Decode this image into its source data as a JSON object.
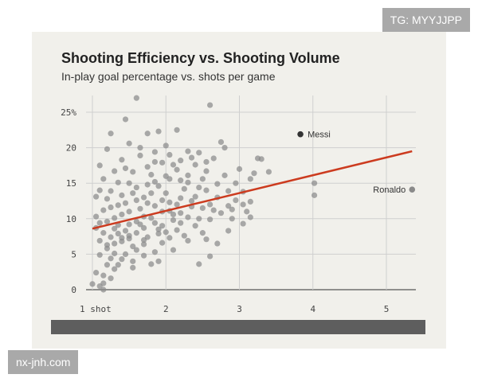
{
  "watermarks": {
    "top_right": "TG: MYYJJPP",
    "bottom_left": "nx-jnh.com"
  },
  "chart_data": {
    "type": "scatter",
    "title": "Shooting Efficiency vs. Shooting Volume",
    "subtitle": "In-play goal percentage vs. shots per game",
    "xlabel": "",
    "ylabel": "",
    "xlim": [
      0.85,
      5.4
    ],
    "ylim": [
      0,
      27
    ],
    "grid": true,
    "x_ticks": [
      {
        "value": 1,
        "label": "1 shot"
      },
      {
        "value": 2,
        "label": "2"
      },
      {
        "value": 3,
        "label": "3"
      },
      {
        "value": 4,
        "label": "4"
      },
      {
        "value": 5,
        "label": "5"
      }
    ],
    "y_ticks": [
      {
        "value": 0,
        "label": "0"
      },
      {
        "value": 5,
        "label": "5"
      },
      {
        "value": 10,
        "label": "10"
      },
      {
        "value": 15,
        "label": "15"
      },
      {
        "value": 20,
        "label": "20"
      },
      {
        "value": 25,
        "label": "25%"
      }
    ],
    "colors": {
      "points": "#8a8a8a",
      "highlight": "#333333",
      "trend": "#cc3b1f"
    },
    "trendline": {
      "x": [
        1.0,
        5.35
      ],
      "y": [
        8.6,
        19.5
      ]
    },
    "highlights": [
      {
        "name": "Messi",
        "x": 3.83,
        "y": 21.9
      },
      {
        "name": "Ronaldo",
        "x": 5.35,
        "y": 14.1
      }
    ],
    "points": [
      [
        1.6,
        27.0
      ],
      [
        2.6,
        26.0
      ],
      [
        1.45,
        24.0
      ],
      [
        1.25,
        22.0
      ],
      [
        1.75,
        22.0
      ],
      [
        2.15,
        22.5
      ],
      [
        1.9,
        22.3
      ],
      [
        2.75,
        20.8
      ],
      [
        2.8,
        20.0
      ],
      [
        2.3,
        19.5
      ],
      [
        1.2,
        19.8
      ],
      [
        1.5,
        20.6
      ],
      [
        1.65,
        20.0
      ],
      [
        2.0,
        20.3
      ],
      [
        2.45,
        19.3
      ],
      [
        3.25,
        18.5
      ],
      [
        3.3,
        18.4
      ],
      [
        3.0,
        17.0
      ],
      [
        3.2,
        16.4
      ],
      [
        3.4,
        16.6
      ],
      [
        3.15,
        15.6
      ],
      [
        2.95,
        15.0
      ],
      [
        2.65,
        18.5
      ],
      [
        2.2,
        18.2
      ],
      [
        1.85,
        18.0
      ],
      [
        1.4,
        18.3
      ],
      [
        1.1,
        17.5
      ],
      [
        4.02,
        15.0
      ],
      [
        4.02,
        13.3
      ],
      [
        3.05,
        13.8
      ],
      [
        3.15,
        12.4
      ],
      [
        2.9,
        11.3
      ],
      [
        3.05,
        9.3
      ],
      [
        3.15,
        10.2
      ],
      [
        2.85,
        8.3
      ],
      [
        2.5,
        8.0
      ],
      [
        2.25,
        7.6
      ],
      [
        2.7,
        6.5
      ],
      [
        2.6,
        4.7
      ],
      [
        2.45,
        3.6
      ],
      [
        1.0,
        0.8
      ],
      [
        1.1,
        0.5
      ],
      [
        1.15,
        0.0
      ],
      [
        1.15,
        0.9
      ],
      [
        1.25,
        1.6
      ],
      [
        1.05,
        2.4
      ],
      [
        1.3,
        2.9
      ],
      [
        1.2,
        3.5
      ],
      [
        1.4,
        4.3
      ],
      [
        1.1,
        4.9
      ],
      [
        1.55,
        3.1
      ],
      [
        1.7,
        4.8
      ],
      [
        1.9,
        4.0
      ],
      [
        1.3,
        6.5
      ],
      [
        1.5,
        7.2
      ],
      [
        1.15,
        8.0
      ],
      [
        1.35,
        9.1
      ],
      [
        1.6,
        9.6
      ],
      [
        1.8,
        10.1
      ],
      [
        1.95,
        9.0
      ],
      [
        2.05,
        11.1
      ],
      [
        1.25,
        11.6
      ],
      [
        1.45,
        12.2
      ],
      [
        1.7,
        13.0
      ],
      [
        1.95,
        12.6
      ],
      [
        2.2,
        12.9
      ],
      [
        2.4,
        13.1
      ],
      [
        2.55,
        14.0
      ],
      [
        2.3,
        15.1
      ],
      [
        2.05,
        15.6
      ],
      [
        1.8,
        16.2
      ],
      [
        1.55,
        16.6
      ],
      [
        1.35,
        15.1
      ],
      [
        1.1,
        14.0
      ],
      [
        1.2,
        12.8
      ],
      [
        1.4,
        10.6
      ],
      [
        1.65,
        11.4
      ],
      [
        1.9,
        14.6
      ],
      [
        2.15,
        16.9
      ],
      [
        2.4,
        17.6
      ],
      [
        2.6,
        12.0
      ],
      [
        2.75,
        10.8
      ],
      [
        2.45,
        10.0
      ],
      [
        2.2,
        9.4
      ],
      [
        2.0,
        8.1
      ],
      [
        1.75,
        7.4
      ],
      [
        1.55,
        6.1
      ],
      [
        1.3,
        5.1
      ],
      [
        1.1,
        6.9
      ],
      [
        1.05,
        10.3
      ],
      [
        1.2,
        9.6
      ],
      [
        1.45,
        8.3
      ],
      [
        1.7,
        8.7
      ],
      [
        1.95,
        6.6
      ],
      [
        2.1,
        5.6
      ],
      [
        1.85,
        5.3
      ],
      [
        1.6,
        5.6
      ],
      [
        1.4,
        6.8
      ],
      [
        1.25,
        7.4
      ],
      [
        1.05,
        8.7
      ],
      [
        1.3,
        10.1
      ],
      [
        1.5,
        11.0
      ],
      [
        1.75,
        12.2
      ],
      [
        2.0,
        13.6
      ],
      [
        2.25,
        14.2
      ],
      [
        2.5,
        15.6
      ],
      [
        2.7,
        14.9
      ],
      [
        2.85,
        13.9
      ],
      [
        2.95,
        12.6
      ],
      [
        2.65,
        11.2
      ],
      [
        2.35,
        11.7
      ],
      [
        2.1,
        10.6
      ],
      [
        1.85,
        9.4
      ],
      [
        1.6,
        8.0
      ],
      [
        1.35,
        7.9
      ],
      [
        1.15,
        11.2
      ],
      [
        1.4,
        13.3
      ],
      [
        1.6,
        14.4
      ],
      [
        1.85,
        15.2
      ],
      [
        2.1,
        17.6
      ],
      [
        2.3,
        16.1
      ],
      [
        2.55,
        16.7
      ],
      [
        2.8,
        16.1
      ],
      [
        1.25,
        13.9
      ],
      [
        1.5,
        15.0
      ],
      [
        1.75,
        17.3
      ],
      [
        1.95,
        17.9
      ],
      [
        1.05,
        13.1
      ],
      [
        1.15,
        15.6
      ],
      [
        1.3,
        16.7
      ],
      [
        1.45,
        17.1
      ],
      [
        1.65,
        18.9
      ],
      [
        1.85,
        19.4
      ],
      [
        2.05,
        19.0
      ],
      [
        2.35,
        18.6
      ],
      [
        2.55,
        18.0
      ],
      [
        1.2,
        5.8
      ],
      [
        1.45,
        5.0
      ],
      [
        1.7,
        6.4
      ],
      [
        1.9,
        7.9
      ],
      [
        2.15,
        8.4
      ],
      [
        2.4,
        9.0
      ],
      [
        2.6,
        9.9
      ],
      [
        2.85,
        11.8
      ],
      [
        3.05,
        12.0
      ],
      [
        3.1,
        11.0
      ],
      [
        2.9,
        10.0
      ],
      [
        2.55,
        7.1
      ],
      [
        2.3,
        6.9
      ],
      [
        2.05,
        7.3
      ],
      [
        1.8,
        3.6
      ],
      [
        1.55,
        4.0
      ],
      [
        1.35,
        3.5
      ],
      [
        1.15,
        2.0
      ],
      [
        1.25,
        4.4
      ],
      [
        1.6,
        12.6
      ],
      [
        1.8,
        13.6
      ],
      [
        2.15,
        12.0
      ],
      [
        2.35,
        12.5
      ],
      [
        1.5,
        9.2
      ],
      [
        1.7,
        10.3
      ],
      [
        1.95,
        11.0
      ],
      [
        2.2,
        10.8
      ],
      [
        2.5,
        11.5
      ],
      [
        2.7,
        13.0
      ],
      [
        1.35,
        11.9
      ],
      [
        1.55,
        13.6
      ],
      [
        1.75,
        14.8
      ],
      [
        2.0,
        16.0
      ],
      [
        2.2,
        15.4
      ],
      [
        2.45,
        14.4
      ],
      [
        1.1,
        9.4
      ],
      [
        1.3,
        8.6
      ],
      [
        1.5,
        7.6
      ],
      [
        1.7,
        7.0
      ],
      [
        1.9,
        8.5
      ],
      [
        2.1,
        9.8
      ],
      [
        2.3,
        10.2
      ],
      [
        1.2,
        6.3
      ],
      [
        1.4,
        7.3
      ],
      [
        1.65,
        9.2
      ],
      [
        1.85,
        11.8
      ],
      [
        2.05,
        12.3
      ]
    ]
  }
}
